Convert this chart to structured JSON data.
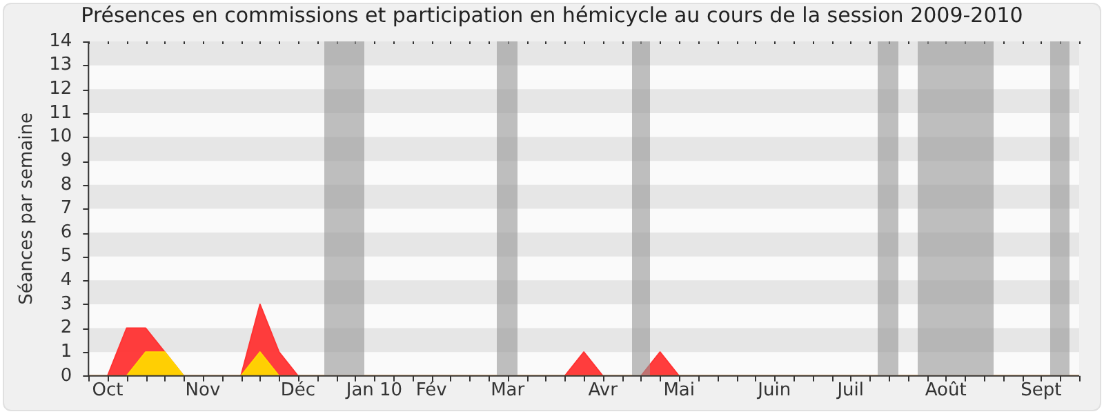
{
  "chart_data": {
    "type": "area",
    "title": "Présences en commissions et participation en hémicycle au cours de la session 2009-2010",
    "ylabel": "Séances par semaine",
    "categories": [
      null,
      "Oct",
      null,
      null,
      null,
      null,
      "Nov",
      null,
      null,
      null,
      null,
      "Déc",
      null,
      null,
      null,
      "Jan 10",
      null,
      null,
      "Fév",
      null,
      null,
      null,
      "Mar",
      null,
      null,
      null,
      null,
      "Avr",
      null,
      null,
      null,
      "Mai",
      null,
      null,
      null,
      null,
      "Juin",
      null,
      null,
      null,
      "Juil",
      null,
      null,
      null,
      null,
      "Août",
      null,
      null,
      null,
      null,
      "Sept",
      null,
      null
    ],
    "ylim": [
      0,
      14
    ],
    "yticks": [
      0,
      1,
      2,
      3,
      4,
      5,
      6,
      7,
      8,
      9,
      10,
      11,
      12,
      13,
      14
    ],
    "legend": false,
    "marker": "none",
    "series": [
      {
        "color": "#ff3333",
        "values": [
          0,
          0,
          2,
          2,
          1,
          0,
          0,
          0,
          0,
          3,
          1,
          0,
          0,
          0,
          0,
          0,
          0,
          0,
          0,
          0,
          0,
          0,
          0,
          0,
          0,
          0,
          1,
          0,
          0,
          0,
          1,
          0,
          0,
          0,
          0,
          0,
          0,
          0,
          0,
          0,
          0,
          0,
          0,
          0,
          0,
          0,
          0,
          0,
          0,
          0,
          0,
          0,
          0
        ]
      },
      {
        "color": "#ffd700",
        "values": [
          0,
          0,
          0,
          1,
          1,
          0,
          0,
          0,
          0,
          1,
          0,
          0,
          0,
          0,
          0,
          0,
          0,
          0,
          0,
          0,
          0,
          0,
          0,
          0,
          0,
          0,
          0,
          0,
          0,
          0,
          0,
          0,
          0,
          0,
          0,
          0,
          0,
          0,
          0,
          0,
          0,
          0,
          0,
          0,
          0,
          0,
          0,
          0,
          0,
          0,
          0,
          0,
          0
        ]
      }
    ]
  }
}
